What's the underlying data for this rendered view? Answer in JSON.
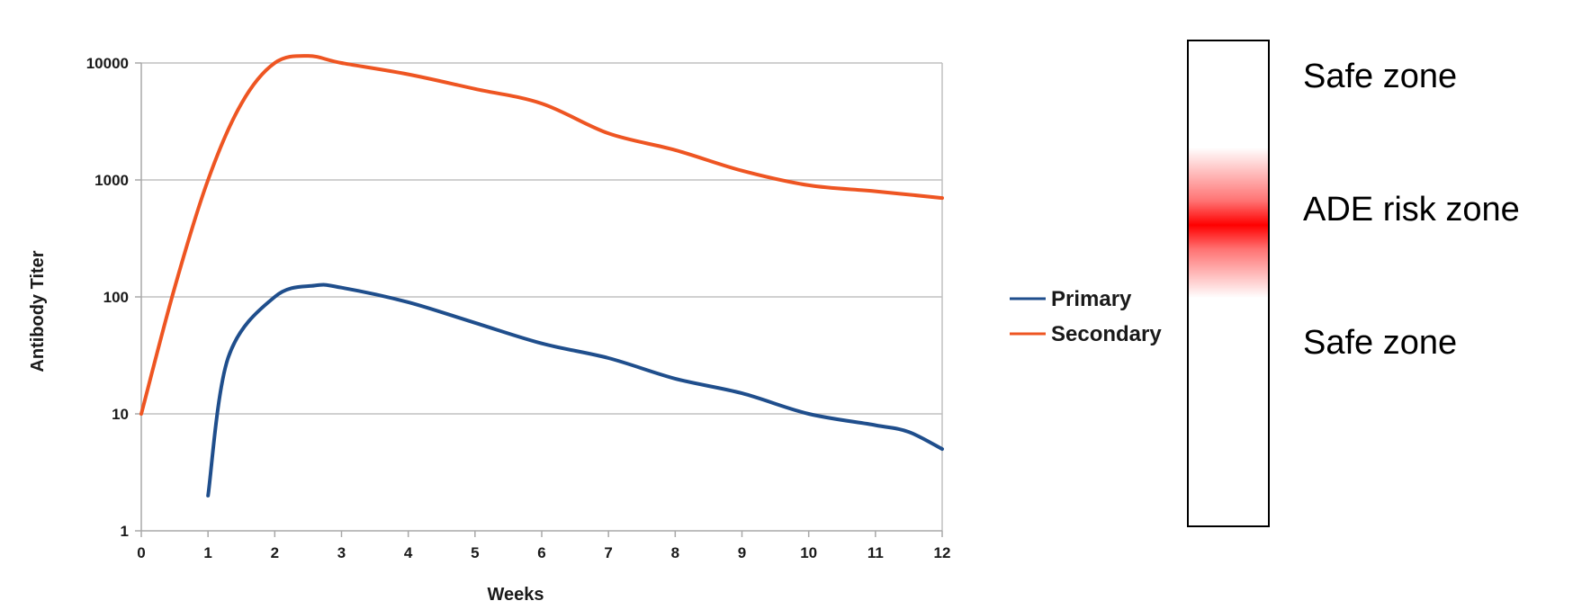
{
  "chart_data": {
    "type": "line",
    "title": "",
    "xlabel": "Weeks",
    "ylabel": "Antibody Titer",
    "xlim": [
      0,
      12
    ],
    "ylim": [
      1,
      10000
    ],
    "yscale": "log",
    "grid": true,
    "legend_position": "right",
    "x_ticks": [
      "0",
      "1",
      "2",
      "3",
      "4",
      "5",
      "6",
      "7",
      "8",
      "9",
      "10",
      "11",
      "12"
    ],
    "y_ticks": [
      "1",
      "10",
      "100",
      "1000",
      "10000"
    ],
    "series": [
      {
        "name": "Primary",
        "color": "#1f4e8c",
        "x": [
          1,
          1.3,
          2,
          2.6,
          3,
          4,
          5,
          6,
          7,
          8,
          9,
          10,
          11,
          11.5,
          12
        ],
        "y": [
          2,
          30,
          100,
          125,
          120,
          90,
          60,
          40,
          30,
          20,
          15,
          10,
          8,
          7,
          5
        ]
      },
      {
        "name": "Secondary",
        "color": "#ee5522",
        "x": [
          0,
          0.5,
          1,
          1.5,
          2,
          2.5,
          3,
          4,
          5,
          6,
          7,
          8,
          9,
          10,
          11,
          12
        ],
        "y": [
          10,
          120,
          1000,
          4500,
          10000,
          11500,
          10000,
          8000,
          6000,
          4500,
          2500,
          1800,
          1200,
          900,
          800,
          700
        ]
      }
    ]
  },
  "risk_bar": {
    "gradient_color": "#ff0000",
    "zones": [
      {
        "label": "Safe zone"
      },
      {
        "label": "ADE risk zone"
      },
      {
        "label": "Safe zone"
      }
    ]
  }
}
